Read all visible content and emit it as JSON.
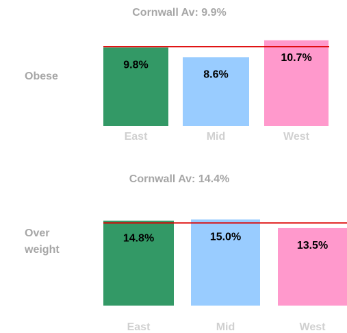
{
  "chart_data": [
    {
      "type": "bar",
      "title": "Cornwall Av: 9.9%",
      "label": "Obese",
      "categories": [
        "East",
        "Mid",
        "West"
      ],
      "values": [
        9.8,
        8.6,
        10.7
      ],
      "value_labels": [
        "9.8%",
        "8.6%",
        "10.7%"
      ],
      "colors": [
        "#339966",
        "#99ccff",
        "#ff99cc"
      ],
      "average": 9.9,
      "average_color": "#dd0000",
      "ylim": [
        0,
        11
      ]
    },
    {
      "type": "bar",
      "title": "Cornwall Av: 14.4%",
      "label": "Over weight",
      "categories": [
        "East",
        "Mid",
        "West"
      ],
      "values": [
        14.8,
        15.0,
        13.5
      ],
      "value_labels": [
        "14.8%",
        "15.0%",
        "13.5%"
      ],
      "colors": [
        "#339966",
        "#99ccff",
        "#ff99cc"
      ],
      "average": 14.4,
      "average_color": "#dd0000",
      "ylim": [
        0,
        16
      ]
    }
  ]
}
